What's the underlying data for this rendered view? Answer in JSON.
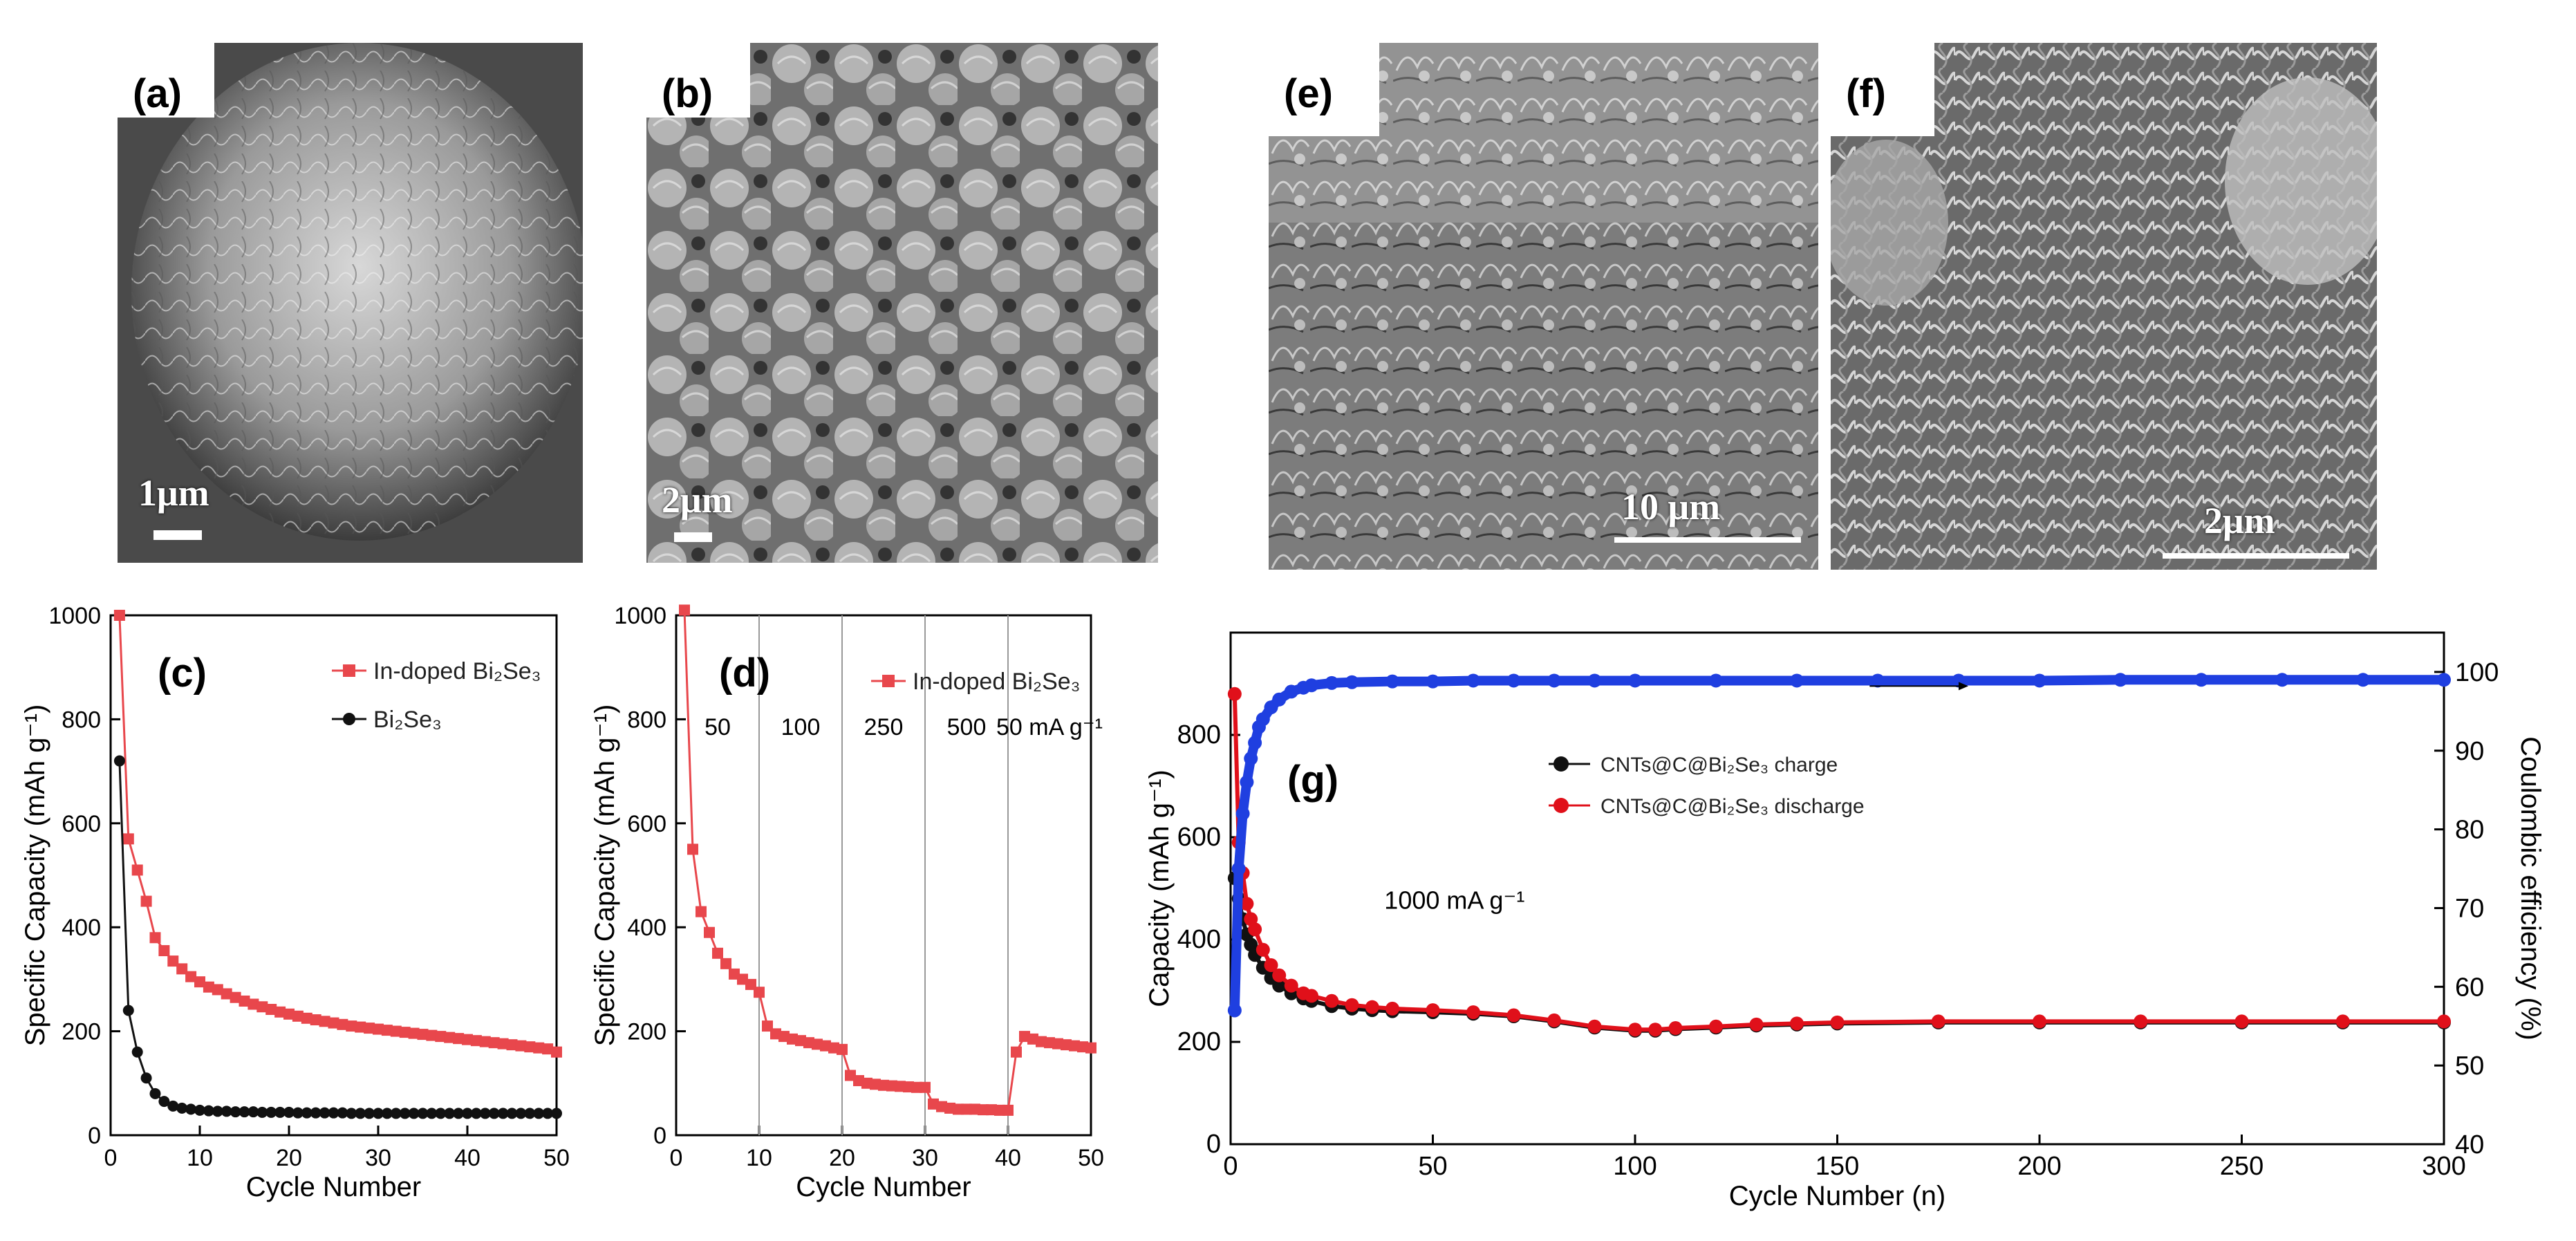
{
  "panels": {
    "a": {
      "label": "(a)",
      "scale": "1μm"
    },
    "b": {
      "label": "(b)",
      "scale": "2μm"
    },
    "e": {
      "label": "(e)",
      "scale": "10 μm"
    },
    "f": {
      "label": "(f)",
      "scale": "2μm"
    },
    "c": {
      "label": "(c)"
    },
    "d": {
      "label": "(d)"
    },
    "g": {
      "label": "(g)"
    }
  },
  "colors": {
    "red": "#e8474c",
    "black": "#111111",
    "blue": "#1f3fe0",
    "darkred": "#e0101a"
  },
  "chart_data": [
    {
      "id": "c",
      "type": "line",
      "xlabel": "Cycle Number",
      "ylabel": "Specific Capacity (mAh g⁻¹)",
      "xlim": [
        0,
        50
      ],
      "ylim": [
        0,
        1000
      ],
      "xticks": [
        0,
        10,
        20,
        30,
        40,
        50
      ],
      "yticks": [
        0,
        200,
        400,
        600,
        800,
        1000
      ],
      "legend_position": "top-right",
      "series": [
        {
          "name": "In-doped Bi₂Se₃",
          "color": "#e8474c",
          "marker": "square",
          "x": [
            1,
            2,
            3,
            4,
            5,
            6,
            7,
            8,
            9,
            10,
            11,
            12,
            13,
            14,
            15,
            16,
            17,
            18,
            19,
            20,
            21,
            22,
            23,
            24,
            25,
            26,
            27,
            28,
            29,
            30,
            31,
            32,
            33,
            34,
            35,
            36,
            37,
            38,
            39,
            40,
            41,
            42,
            43,
            44,
            45,
            46,
            47,
            48,
            49,
            50
          ],
          "y": [
            1000,
            570,
            510,
            450,
            380,
            355,
            335,
            320,
            305,
            295,
            285,
            280,
            272,
            265,
            258,
            252,
            247,
            242,
            237,
            233,
            229,
            225,
            222,
            219,
            216,
            213,
            210,
            208,
            206,
            204,
            202,
            200,
            198,
            196,
            194,
            192,
            190,
            188,
            186,
            184,
            182,
            180,
            178,
            176,
            174,
            172,
            170,
            168,
            166,
            160
          ]
        },
        {
          "name": "Bi₂Se₃",
          "color": "#111111",
          "marker": "circle",
          "x": [
            1,
            2,
            3,
            4,
            5,
            6,
            7,
            8,
            9,
            10,
            11,
            12,
            13,
            14,
            15,
            16,
            17,
            18,
            19,
            20,
            21,
            22,
            23,
            24,
            25,
            26,
            27,
            28,
            29,
            30,
            31,
            32,
            33,
            34,
            35,
            36,
            37,
            38,
            39,
            40,
            41,
            42,
            43,
            44,
            45,
            46,
            47,
            48,
            49,
            50
          ],
          "y": [
            720,
            240,
            160,
            110,
            80,
            65,
            56,
            52,
            50,
            48,
            47,
            46,
            46,
            45,
            45,
            45,
            44,
            44,
            44,
            44,
            43,
            43,
            43,
            43,
            43,
            43,
            42,
            42,
            42,
            42,
            42,
            42,
            42,
            42,
            42,
            42,
            42,
            42,
            42,
            42,
            42,
            42,
            42,
            42,
            42,
            42,
            42,
            42,
            42,
            42
          ]
        }
      ]
    },
    {
      "id": "d",
      "type": "line",
      "xlabel": "Cycle Number",
      "ylabel": "Specific Capacity (mAh g⁻¹)",
      "xlim": [
        0,
        50
      ],
      "ylim": [
        0,
        1000
      ],
      "xticks": [
        0,
        10,
        20,
        30,
        40,
        50
      ],
      "yticks": [
        0,
        200,
        400,
        600,
        800,
        1000
      ],
      "legend_position": "top-right",
      "dividers": [
        10,
        20,
        30,
        40
      ],
      "rate_labels": [
        {
          "x": 5,
          "text": "50"
        },
        {
          "x": 15,
          "text": "100"
        },
        {
          "x": 25,
          "text": "250"
        },
        {
          "x": 35,
          "text": "500"
        },
        {
          "x": 45,
          "text": "50 mA g⁻¹"
        }
      ],
      "series": [
        {
          "name": "In-doped Bi₂Se₃",
          "color": "#e8474c",
          "marker": "square",
          "x": [
            1,
            2,
            3,
            4,
            5,
            6,
            7,
            8,
            9,
            10,
            11,
            12,
            13,
            14,
            15,
            16,
            17,
            18,
            19,
            20,
            21,
            22,
            23,
            24,
            25,
            26,
            27,
            28,
            29,
            30,
            31,
            32,
            33,
            34,
            35,
            36,
            37,
            38,
            39,
            40,
            41,
            42,
            43,
            44,
            45,
            46,
            47,
            48,
            49,
            50
          ],
          "y": [
            1010,
            550,
            430,
            390,
            350,
            330,
            310,
            300,
            290,
            275,
            210,
            195,
            190,
            185,
            182,
            178,
            175,
            172,
            168,
            165,
            115,
            105,
            100,
            98,
            96,
            95,
            94,
            93,
            92,
            92,
            60,
            55,
            52,
            50,
            50,
            50,
            49,
            49,
            48,
            48,
            160,
            190,
            185,
            180,
            178,
            176,
            174,
            172,
            170,
            168
          ]
        }
      ]
    },
    {
      "id": "g",
      "type": "scatter",
      "xlabel": "Cycle Number (n)",
      "ylabel": "Capacity (mAh g⁻¹)",
      "ylabel_right": "Coulombic efficiency (%)",
      "xlim": [
        0,
        300
      ],
      "ylim": [
        0,
        1000
      ],
      "ylim_right": [
        40,
        105
      ],
      "xticks": [
        0,
        50,
        100,
        150,
        200,
        250,
        300
      ],
      "yticks": [
        0,
        200,
        400,
        600,
        800
      ],
      "yticks_right": [
        40,
        50,
        60,
        70,
        80,
        90,
        100
      ],
      "annotation": "1000 mA g⁻¹",
      "legend_position": "upper-center",
      "series": [
        {
          "name": "CNTs@C@Bi₂Se₃ charge",
          "color": "#111111",
          "marker": "circle",
          "x": [
            1,
            2,
            3,
            4,
            5,
            6,
            8,
            10,
            12,
            15,
            18,
            20,
            25,
            30,
            35,
            40,
            50,
            60,
            70,
            80,
            90,
            100,
            105,
            110,
            120,
            130,
            140,
            150,
            175,
            200,
            225,
            250,
            275,
            300
          ],
          "y": [
            520,
            480,
            440,
            410,
            390,
            370,
            345,
            325,
            310,
            295,
            285,
            280,
            270,
            265,
            262,
            260,
            258,
            255,
            250,
            240,
            228,
            222,
            222,
            225,
            228,
            232,
            234,
            236,
            238,
            238,
            238,
            238,
            238,
            238
          ]
        },
        {
          "name": "CNTs@C@Bi₂Se₃ discharge",
          "color": "#e0101a",
          "marker": "circle",
          "x": [
            1,
            2,
            3,
            4,
            5,
            6,
            8,
            10,
            12,
            15,
            18,
            20,
            25,
            30,
            35,
            40,
            50,
            60,
            70,
            80,
            90,
            100,
            105,
            110,
            120,
            130,
            140,
            150,
            175,
            200,
            225,
            250,
            275,
            300
          ],
          "y": [
            880,
            590,
            530,
            470,
            440,
            420,
            380,
            350,
            330,
            310,
            295,
            290,
            280,
            272,
            268,
            265,
            262,
            258,
            252,
            242,
            230,
            224,
            224,
            227,
            230,
            234,
            236,
            238,
            240,
            240,
            240,
            240,
            240,
            240
          ]
        },
        {
          "name": "Coulombic efficiency",
          "axis": "right",
          "color": "#1f3fe0",
          "marker": "circle",
          "x": [
            1,
            2,
            3,
            4,
            5,
            6,
            7,
            8,
            10,
            12,
            15,
            18,
            20,
            25,
            30,
            40,
            50,
            60,
            70,
            80,
            90,
            100,
            120,
            140,
            160,
            180,
            200,
            220,
            240,
            260,
            280,
            300
          ],
          "y": [
            57,
            75,
            82,
            86,
            89,
            91,
            93,
            94,
            95.5,
            96.5,
            97.5,
            98,
            98.3,
            98.6,
            98.7,
            98.8,
            98.8,
            98.9,
            98.9,
            98.9,
            98.9,
            98.9,
            98.9,
            98.9,
            98.9,
            98.9,
            98.9,
            99,
            99,
            99,
            99,
            99
          ]
        }
      ]
    }
  ]
}
